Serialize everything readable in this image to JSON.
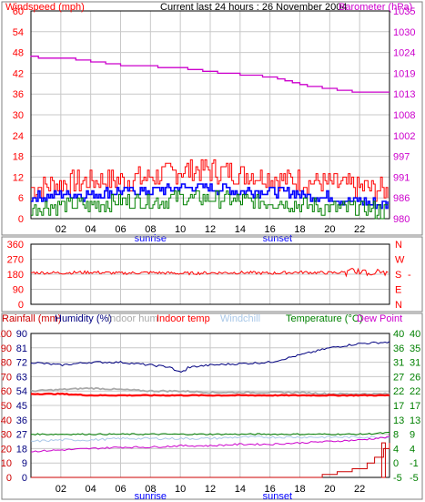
{
  "header": {
    "title": "Current last 24 hours : 26 November 2004",
    "windspeed_label": "Windspeed (mph)",
    "barometer_label": "Barometer (hPa)"
  },
  "colors": {
    "windspeed": "#ff0000",
    "gust": "#ff0000",
    "avg": "#0000ff",
    "low": "#008000",
    "barometer": "#cc00cc",
    "direction": "#ff0000",
    "rainfall": "#cc0000",
    "humidity": "#000080",
    "indoor_hum": "#aaaaaa",
    "indoor_temp": "#ff0000",
    "windchill": "#aac8e8",
    "temperature": "#008000",
    "dewpoint": "#cc00cc",
    "frame": "#000000",
    "grid": "#c8c8c8"
  },
  "chart_data": [
    {
      "type": "line",
      "name": "wind-barometer",
      "x_ticks": [
        "02",
        "04",
        "06",
        "08",
        "10",
        "12",
        "14",
        "16",
        "18",
        "20",
        "22"
      ],
      "x_sublabels": {
        "sunrise": "sunrise",
        "sunset": "sunset"
      },
      "left_axis": {
        "label": "Windspeed (mph)",
        "ticks": [
          0,
          6,
          12,
          18,
          24,
          30,
          36,
          42,
          48,
          54,
          60
        ],
        "range": [
          0,
          60
        ]
      },
      "right_axis": {
        "label": "Barometer (hPa)",
        "ticks": [
          980,
          986,
          991,
          997,
          1002,
          1008,
          1013,
          1019,
          1024,
          1030,
          1035
        ],
        "range": [
          980,
          1035
        ]
      },
      "series": [
        {
          "role": "gust",
          "x": [
            0,
            2,
            4,
            6,
            8,
            10,
            12,
            14,
            16,
            18,
            20,
            22,
            24
          ],
          "y": [
            9,
            10,
            11,
            11,
            12,
            14,
            14,
            13,
            12,
            11,
            10,
            9,
            8
          ]
        },
        {
          "role": "avg",
          "x": [
            0,
            2,
            4,
            6,
            8,
            10,
            12,
            14,
            16,
            18,
            20,
            22,
            24
          ],
          "y": [
            6,
            7,
            7,
            8,
            8,
            9,
            9,
            8,
            8,
            7,
            6,
            5,
            4
          ]
        },
        {
          "role": "low",
          "x": [
            0,
            2,
            4,
            6,
            8,
            10,
            12,
            14,
            16,
            18,
            20,
            22,
            24
          ],
          "y": [
            3,
            4,
            4,
            5,
            5,
            6,
            6,
            5,
            5,
            4,
            3,
            3,
            2
          ]
        },
        {
          "role": "barometer",
          "x": [
            0,
            2,
            4,
            6,
            8,
            10,
            12,
            14,
            16,
            18,
            20,
            22,
            24
          ],
          "y": [
            1022.8,
            1022.5,
            1021.5,
            1020.7,
            1020.3,
            1019.8,
            1018.8,
            1018.2,
            1017.4,
            1015.5,
            1014.3,
            1013.4,
            1013.3
          ]
        }
      ]
    },
    {
      "type": "scatter",
      "name": "wind-direction",
      "left_axis": {
        "ticks": [
          0,
          90,
          180,
          270,
          360
        ],
        "range": [
          0,
          360
        ]
      },
      "right_axis": {
        "ticks": [
          "N",
          "E",
          "S",
          "W",
          "N"
        ]
      },
      "series": [
        {
          "role": "direction",
          "x": [
            0,
            2,
            4,
            6,
            8,
            10,
            12,
            14,
            16,
            18,
            20,
            22,
            24
          ],
          "y": [
            190,
            188,
            192,
            186,
            190,
            185,
            188,
            190,
            186,
            192,
            188,
            195,
            185
          ]
        }
      ]
    },
    {
      "type": "line",
      "name": "temp-humidity-rain",
      "legend": [
        "Rainfall (mm)",
        "Humidity (%)",
        "Indoor hum",
        "Indoor temp",
        "Windchill",
        "Temperature (°C)",
        "Dew Point"
      ],
      "left_axis_rain": {
        "ticks": [
          0,
          10,
          20,
          30,
          40,
          50,
          60,
          70,
          80,
          90,
          100
        ],
        "range": [
          0,
          100
        ]
      },
      "left_axis_hum": {
        "ticks": [
          0,
          9,
          18,
          27,
          36,
          45,
          54,
          63,
          72,
          81,
          90,
          100
        ]
      },
      "right_axis_temp": {
        "ticks": [
          -5,
          0,
          4,
          8,
          13,
          17,
          22,
          27,
          31,
          36,
          40
        ],
        "range": [
          -5,
          40
        ]
      },
      "right_axis_temp2": {
        "ticks": [
          -5,
          -1,
          4,
          9,
          13,
          17,
          22,
          26,
          31,
          35,
          40
        ]
      },
      "series": [
        {
          "role": "humidity",
          "x": [
            0,
            2,
            4,
            6,
            8,
            10,
            12,
            14,
            16,
            18,
            20,
            22,
            24
          ],
          "y": [
            80,
            78,
            80,
            80,
            78,
            76,
            78,
            79,
            80,
            85,
            90,
            93,
            94
          ]
        },
        {
          "role": "indoor_hum",
          "x": [
            0,
            2,
            4,
            6,
            8,
            10,
            12,
            14,
            16,
            18,
            20,
            22,
            24
          ],
          "y": [
            60,
            61,
            62,
            61,
            60,
            60,
            59,
            59,
            59,
            59,
            58,
            58,
            58
          ]
        },
        {
          "role": "indoor_temp",
          "x": [
            0,
            2,
            4,
            6,
            8,
            10,
            12,
            14,
            16,
            18,
            20,
            22,
            24
          ],
          "y": [
            58,
            58,
            57,
            57,
            57,
            57,
            57,
            57,
            57,
            57,
            57,
            57,
            57
          ]
        },
        {
          "role": "temperature",
          "x": [
            0,
            2,
            4,
            6,
            8,
            10,
            12,
            14,
            16,
            18,
            20,
            22,
            24
          ],
          "y": [
            30,
            30,
            30,
            30,
            30,
            30,
            30,
            30,
            30,
            30,
            30,
            30,
            31
          ]
        },
        {
          "role": "windchill",
          "x": [
            0,
            2,
            4,
            6,
            8,
            10,
            12,
            14,
            16,
            18,
            20,
            22,
            24
          ],
          "y": [
            25,
            26,
            26,
            27,
            27,
            27,
            27,
            28,
            28,
            28,
            28,
            28,
            28
          ]
        },
        {
          "role": "dewpoint",
          "x": [
            0,
            2,
            4,
            6,
            8,
            10,
            12,
            14,
            16,
            18,
            20,
            22,
            24
          ],
          "y": [
            18,
            19,
            20,
            21,
            21,
            22,
            22,
            23,
            23,
            24,
            25,
            26,
            28
          ]
        },
        {
          "role": "rainfall",
          "x": [
            0,
            18.5,
            19.5,
            20.5,
            21.5,
            22.5,
            23,
            23.6,
            24
          ],
          "y": [
            0,
            0,
            2,
            4,
            6,
            10,
            14,
            20,
            24
          ]
        }
      ]
    }
  ]
}
